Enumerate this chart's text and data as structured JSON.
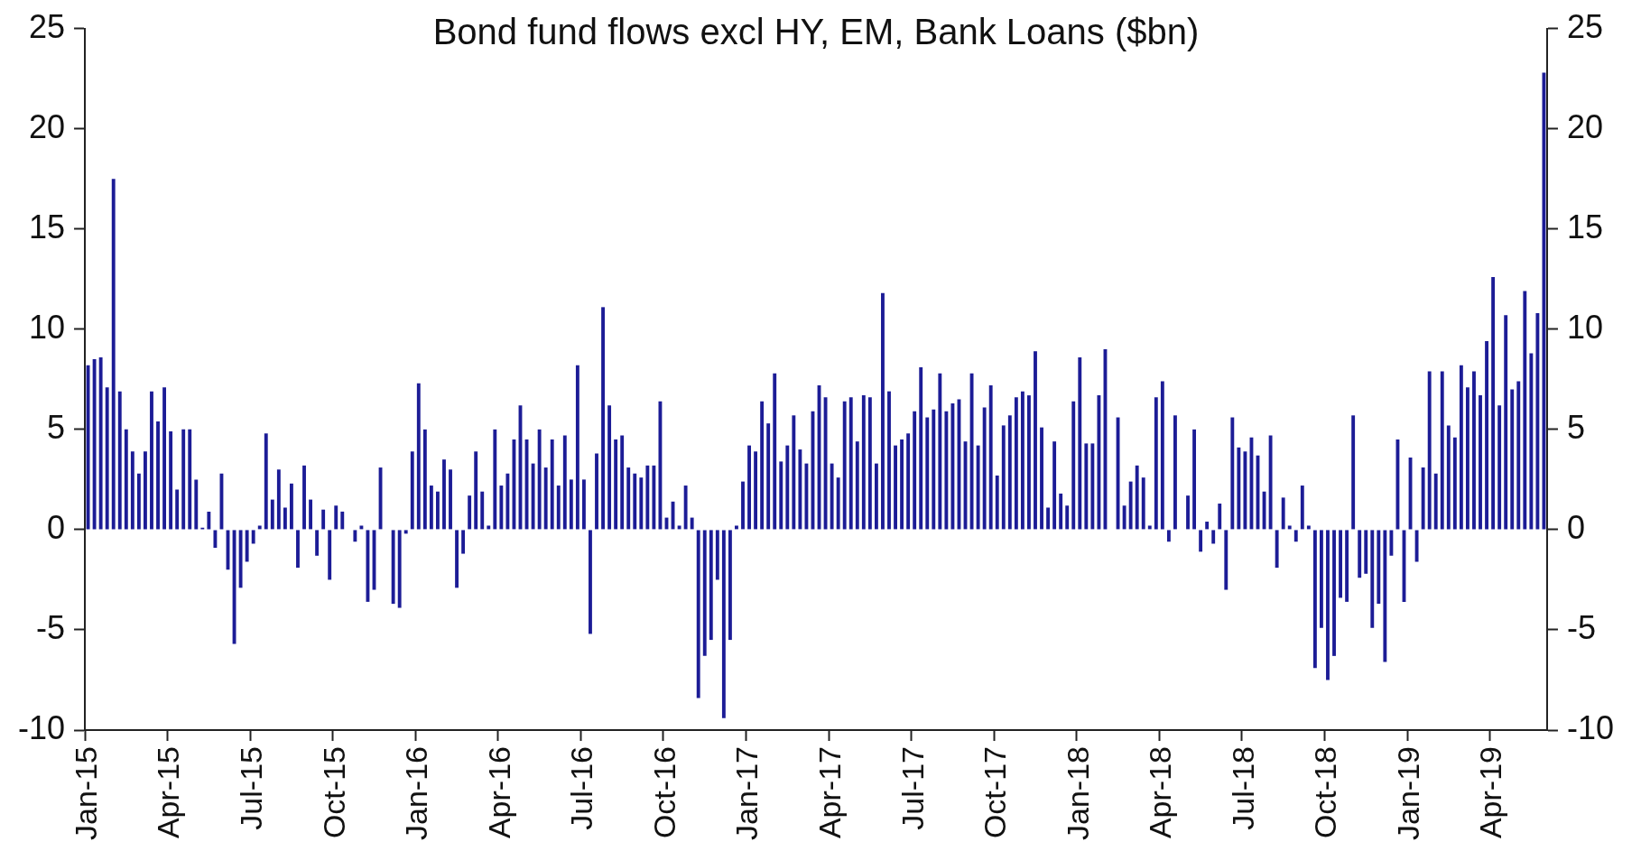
{
  "chart_data": {
    "type": "bar",
    "title": "Bond fund flows excl HY, EM, Bank Loans ($bn)",
    "categories": [
      "Jan-15",
      null,
      null,
      null,
      null,
      null,
      null,
      null,
      null,
      null,
      null,
      null,
      null,
      "Apr-15",
      null,
      null,
      null,
      null,
      null,
      null,
      null,
      null,
      null,
      null,
      null,
      null,
      "Jul-15",
      null,
      null,
      null,
      null,
      null,
      null,
      null,
      null,
      null,
      null,
      null,
      null,
      "Oct-15",
      null,
      null,
      null,
      null,
      null,
      null,
      null,
      null,
      null,
      null,
      null,
      null,
      "Jan-16",
      null,
      null,
      null,
      null,
      null,
      null,
      null,
      null,
      null,
      null,
      null,
      null,
      "Apr-16",
      null,
      null,
      null,
      null,
      null,
      null,
      null,
      null,
      null,
      null,
      null,
      null,
      "Jul-16",
      null,
      null,
      null,
      null,
      null,
      null,
      null,
      null,
      null,
      null,
      null,
      null,
      "Oct-16",
      null,
      null,
      null,
      null,
      null,
      null,
      null,
      null,
      null,
      null,
      null,
      null,
      "Jan-17",
      null,
      null,
      null,
      null,
      null,
      null,
      null,
      null,
      null,
      null,
      null,
      null,
      "Apr-17",
      null,
      null,
      null,
      null,
      null,
      null,
      null,
      null,
      null,
      null,
      null,
      null,
      "Jul-17",
      null,
      null,
      null,
      null,
      null,
      null,
      null,
      null,
      null,
      null,
      null,
      null,
      "Oct-17",
      null,
      null,
      null,
      null,
      null,
      null,
      null,
      null,
      null,
      null,
      null,
      null,
      "Jan-18",
      null,
      null,
      null,
      null,
      null,
      null,
      null,
      null,
      null,
      null,
      null,
      null,
      "Apr-18",
      null,
      null,
      null,
      null,
      null,
      null,
      null,
      null,
      null,
      null,
      null,
      null,
      "Jul-18",
      null,
      null,
      null,
      null,
      null,
      null,
      null,
      null,
      null,
      null,
      null,
      null,
      "Oct-18",
      null,
      null,
      null,
      null,
      null,
      null,
      null,
      null,
      null,
      null,
      null,
      null,
      "Jan-19",
      null,
      null,
      null,
      null,
      null,
      null,
      null,
      null,
      null,
      null,
      null,
      null,
      "Apr-19",
      null,
      null,
      null,
      null,
      null,
      null,
      null,
      null
    ],
    "values": [
      8.2,
      8.5,
      8.6,
      7.1,
      17.5,
      6.9,
      5.0,
      3.9,
      2.8,
      3.9,
      6.9,
      5.4,
      7.1,
      4.9,
      2.0,
      5.0,
      5.0,
      2.5,
      0.1,
      0.9,
      -0.9,
      2.8,
      -2.0,
      -5.7,
      -2.9,
      -1.6,
      -0.7,
      0.2,
      4.8,
      1.5,
      3.0,
      1.1,
      2.3,
      -1.9,
      3.2,
      1.5,
      -1.3,
      1.0,
      -2.5,
      1.2,
      0.9,
      0,
      -0.6,
      0.2,
      -3.6,
      -3.0,
      3.1,
      0,
      -3.7,
      -3.9,
      -0.2,
      3.9,
      7.3,
      5.0,
      2.2,
      1.9,
      3.5,
      3.0,
      -2.9,
      -1.2,
      1.7,
      3.9,
      1.9,
      0.2,
      5.0,
      2.2,
      2.8,
      4.5,
      6.2,
      4.5,
      3.3,
      5.0,
      3.1,
      4.5,
      2.2,
      4.7,
      2.5,
      8.2,
      2.5,
      -5.2,
      3.8,
      11.1,
      6.2,
      4.5,
      4.7,
      3.1,
      2.8,
      2.6,
      3.2,
      3.2,
      6.4,
      0.6,
      1.4,
      0.2,
      2.2,
      0.6,
      -8.4,
      -6.3,
      -5.5,
      -2.5,
      -9.4,
      -5.5,
      0.2,
      2.4,
      4.2,
      3.9,
      6.4,
      5.3,
      7.8,
      3.4,
      4.2,
      5.7,
      4.0,
      3.3,
      5.9,
      7.2,
      6.6,
      3.3,
      2.6,
      6.4,
      6.6,
      4.4,
      6.7,
      6.6,
      3.3,
      11.8,
      6.9,
      4.2,
      4.5,
      4.8,
      5.9,
      8.1,
      5.6,
      6.0,
      7.8,
      5.9,
      6.3,
      6.5,
      4.4,
      7.8,
      4.2,
      6.1,
      7.2,
      2.7,
      5.2,
      5.7,
      6.6,
      6.9,
      6.7,
      8.9,
      5.1,
      1.1,
      4.4,
      1.8,
      1.2,
      6.4,
      8.6,
      4.3,
      4.3,
      6.7,
      9.0,
      0,
      5.6,
      1.2,
      2.4,
      3.2,
      2.6,
      0.2,
      6.6,
      7.4,
      -0.6,
      5.7,
      0,
      1.7,
      5.0,
      -1.1,
      0.4,
      -0.7,
      1.3,
      -3.0,
      5.6,
      4.1,
      3.9,
      4.6,
      3.7,
      1.9,
      4.7,
      -1.9,
      1.6,
      0.2,
      -0.6,
      2.2,
      0.2,
      -6.9,
      -4.9,
      -7.5,
      -6.3,
      -3.4,
      -3.6,
      5.7,
      -2.4,
      -2.2,
      -4.9,
      -3.7,
      -6.6,
      -1.3,
      4.5,
      -3.6,
      3.6,
      -1.6,
      3.1,
      7.9,
      2.8,
      7.9,
      5.2,
      4.6,
      8.2,
      7.1,
      7.9,
      6.7,
      9.4,
      12.6,
      6.2,
      10.7,
      7.0,
      7.4,
      11.9,
      8.8,
      10.8,
      22.8
    ],
    "color": "#1c1c96",
    "ylim": [
      -10,
      25
    ],
    "yticks": [
      -10,
      -5,
      0,
      5,
      10,
      15,
      20,
      25
    ],
    "y2lim": [
      -10,
      25
    ],
    "y2ticks": [
      -10,
      -5,
      0,
      5,
      10,
      15,
      20,
      25
    ]
  }
}
